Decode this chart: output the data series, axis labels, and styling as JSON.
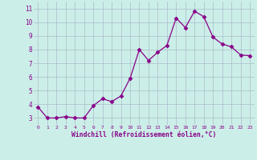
{
  "x": [
    0,
    1,
    2,
    3,
    4,
    5,
    6,
    7,
    8,
    9,
    10,
    11,
    12,
    13,
    14,
    15,
    16,
    17,
    18,
    19,
    20,
    21,
    22,
    23
  ],
  "y": [
    3.8,
    3.0,
    3.0,
    3.1,
    3.0,
    3.0,
    3.9,
    4.4,
    4.2,
    4.6,
    5.9,
    8.0,
    7.2,
    7.8,
    8.3,
    10.3,
    9.6,
    10.8,
    10.4,
    8.9,
    8.4,
    8.2,
    7.6,
    7.55
  ],
  "line_color": "#880088",
  "marker": "D",
  "marker_size": 2.5,
  "bg_color": "#cceee8",
  "grid_color": "#aabbcc",
  "xlabel": "Windchill (Refroidissement éolien,°C)",
  "xlabel_color": "#880088",
  "ylabel_ticks": [
    3,
    4,
    5,
    6,
    7,
    8,
    9,
    10,
    11
  ],
  "xtick_labels": [
    "0",
    "1",
    "2",
    "3",
    "4",
    "5",
    "6",
    "7",
    "8",
    "9",
    "10",
    "11",
    "12",
    "13",
    "14",
    "15",
    "16",
    "17",
    "18",
    "19",
    "20",
    "21",
    "22",
    "23"
  ],
  "ylim": [
    2.5,
    11.5
  ],
  "xlim": [
    -0.5,
    23.5
  ],
  "figwidth": 3.2,
  "figheight": 2.0,
  "dpi": 100
}
